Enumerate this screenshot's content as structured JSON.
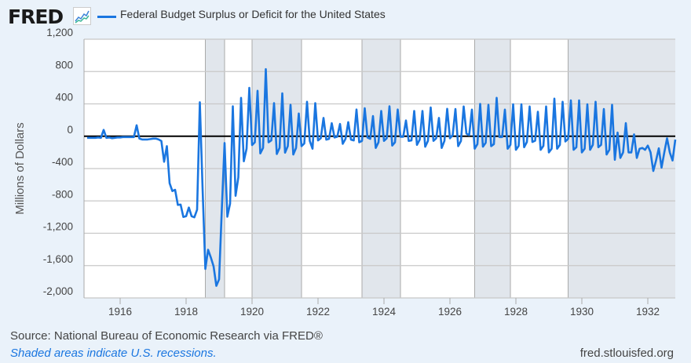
{
  "header": {
    "logo": "FRED",
    "logo_icon": "line-chart-icon"
  },
  "chart_data": {
    "type": "line",
    "title": "Federal Budget Surplus or Deficit for the United States",
    "ylabel": "Millions of Dollars",
    "xlabel": "",
    "ylim": [
      -2000,
      1200
    ],
    "yticks": [
      1200,
      800,
      400,
      0,
      -400,
      -800,
      -1200,
      -1600,
      -2000
    ],
    "ytick_labels": [
      "1,200",
      "800",
      "400",
      "0",
      "-400",
      "-800",
      "-1,200",
      "-1,600",
      "-2,000"
    ],
    "xticks": [
      "1916",
      "1918",
      "1920",
      "1922",
      "1924",
      "1926",
      "1928",
      "1930",
      "1932"
    ],
    "xlim": [
      "1914-12",
      "1932-11"
    ],
    "grid": true,
    "legend": "top-left",
    "series": [
      {
        "name": "Federal Budget Surplus or Deficit for the United States",
        "color": "#1a76e0",
        "start": "1915-01",
        "frequency": "monthly",
        "values": [
          -20,
          -20,
          -20,
          -20,
          -15,
          -20,
          78,
          -20,
          -15,
          -25,
          -20,
          -15,
          -15,
          -10,
          -10,
          -10,
          -10,
          -10,
          135,
          -30,
          -40,
          -40,
          -40,
          -35,
          -30,
          -30,
          -40,
          -60,
          -316,
          -123,
          -581,
          -678,
          -663,
          -850,
          -845,
          -998,
          -990,
          -882,
          -990,
          -1003,
          -908,
          420,
          -650,
          -1641,
          -1405,
          -1500,
          -1609,
          -1851,
          -1770,
          -900,
          -84,
          -995,
          -833,
          371,
          -736,
          -510,
          475,
          -310,
          -155,
          598,
          -110,
          -75,
          562,
          -213,
          -145,
          830,
          -75,
          -52,
          410,
          -220,
          -145,
          530,
          -203,
          -123,
          388,
          -226,
          -145,
          281,
          -123,
          -90,
          426,
          -58,
          -155,
          410,
          -52,
          -26,
          226,
          -42,
          -32,
          161,
          -16,
          -6,
          152,
          -94,
          -32,
          174,
          -42,
          -52,
          330,
          -75,
          -58,
          346,
          -16,
          -32,
          249,
          -145,
          -75,
          313,
          -58,
          -26,
          371,
          -116,
          -75,
          330,
          -6,
          -6,
          194,
          -58,
          -52,
          313,
          -107,
          -42,
          313,
          -130,
          -58,
          355,
          -58,
          -26,
          226,
          -145,
          -58,
          339,
          -26,
          13,
          336,
          -123,
          -60,
          368,
          32,
          13,
          329,
          -155,
          -97,
          400,
          -129,
          -81,
          388,
          -123,
          -97,
          475,
          -10,
          -10,
          329,
          -155,
          -107,
          394,
          -168,
          -120,
          394,
          -136,
          -71,
          368,
          -71,
          -55,
          303,
          -168,
          -120,
          368,
          -200,
          -155,
          465,
          -155,
          -107,
          426,
          -65,
          -32,
          443,
          -168,
          -136,
          443,
          -200,
          -155,
          394,
          -168,
          -107,
          426,
          -136,
          -107,
          336,
          -226,
          -168,
          388,
          -291,
          45,
          -268,
          -200,
          161,
          -200,
          -200,
          23,
          -268,
          -155,
          -145,
          -168,
          -116,
          -200,
          -430,
          -300,
          -150,
          -388,
          -200,
          -26,
          -200,
          -300,
          -42
        ]
      }
    ],
    "recessions": [
      [
        "1918-08",
        "1919-03"
      ],
      [
        "1920-01",
        "1921-07"
      ],
      [
        "1923-05",
        "1924-07"
      ],
      [
        "1926-10",
        "1927-11"
      ],
      [
        "1929-08",
        "1933-03"
      ]
    ],
    "colors": {
      "background": "#eaf2fa",
      "recession": "#e1e6ec",
      "zero_line": "#000000"
    }
  },
  "footer": {
    "source": "Source: National Bureau of Economic Research via FRED®",
    "shaded_note": "Shaded areas indicate U.S. recessions.",
    "url": "fred.stlouisfed.org"
  }
}
